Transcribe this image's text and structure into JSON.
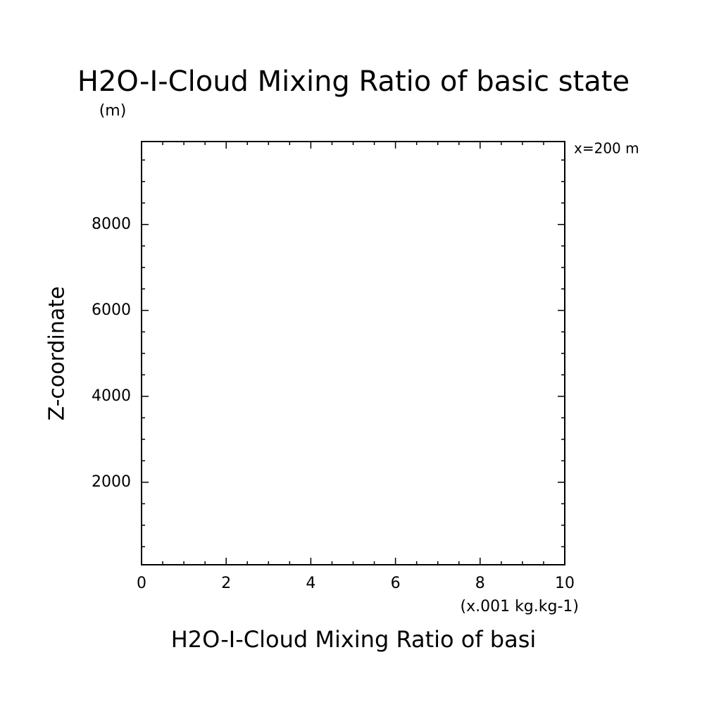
{
  "chart_data": {
    "type": "line",
    "title": "H2O-I-Cloud Mixing Ratio of basic state",
    "y_unit": "(m)",
    "annotation": "x=200 m",
    "ylabel": "Z-coordinate",
    "x_unit": "(x.001 kg.kg-1)",
    "xlabel": "H2O-I-Cloud Mixing Ratio of basi",
    "series": [],
    "xlim": [
      0,
      10
    ],
    "xticks": [
      0,
      2,
      4,
      6,
      8,
      10
    ],
    "xminorticks": [
      0.5,
      1,
      1.5,
      2.5,
      3,
      3.5,
      4.5,
      5,
      5.5,
      6.5,
      7,
      7.5,
      8.5,
      9,
      9.5
    ],
    "ylim": [
      80,
      9930
    ],
    "yticks": [
      2000,
      4000,
      6000,
      8000
    ],
    "yminorticks": [
      500,
      1000,
      1500,
      2500,
      3000,
      3500,
      4500,
      5000,
      5500,
      6500,
      7000,
      7500,
      8500,
      9000,
      9500
    ],
    "grid": false
  }
}
